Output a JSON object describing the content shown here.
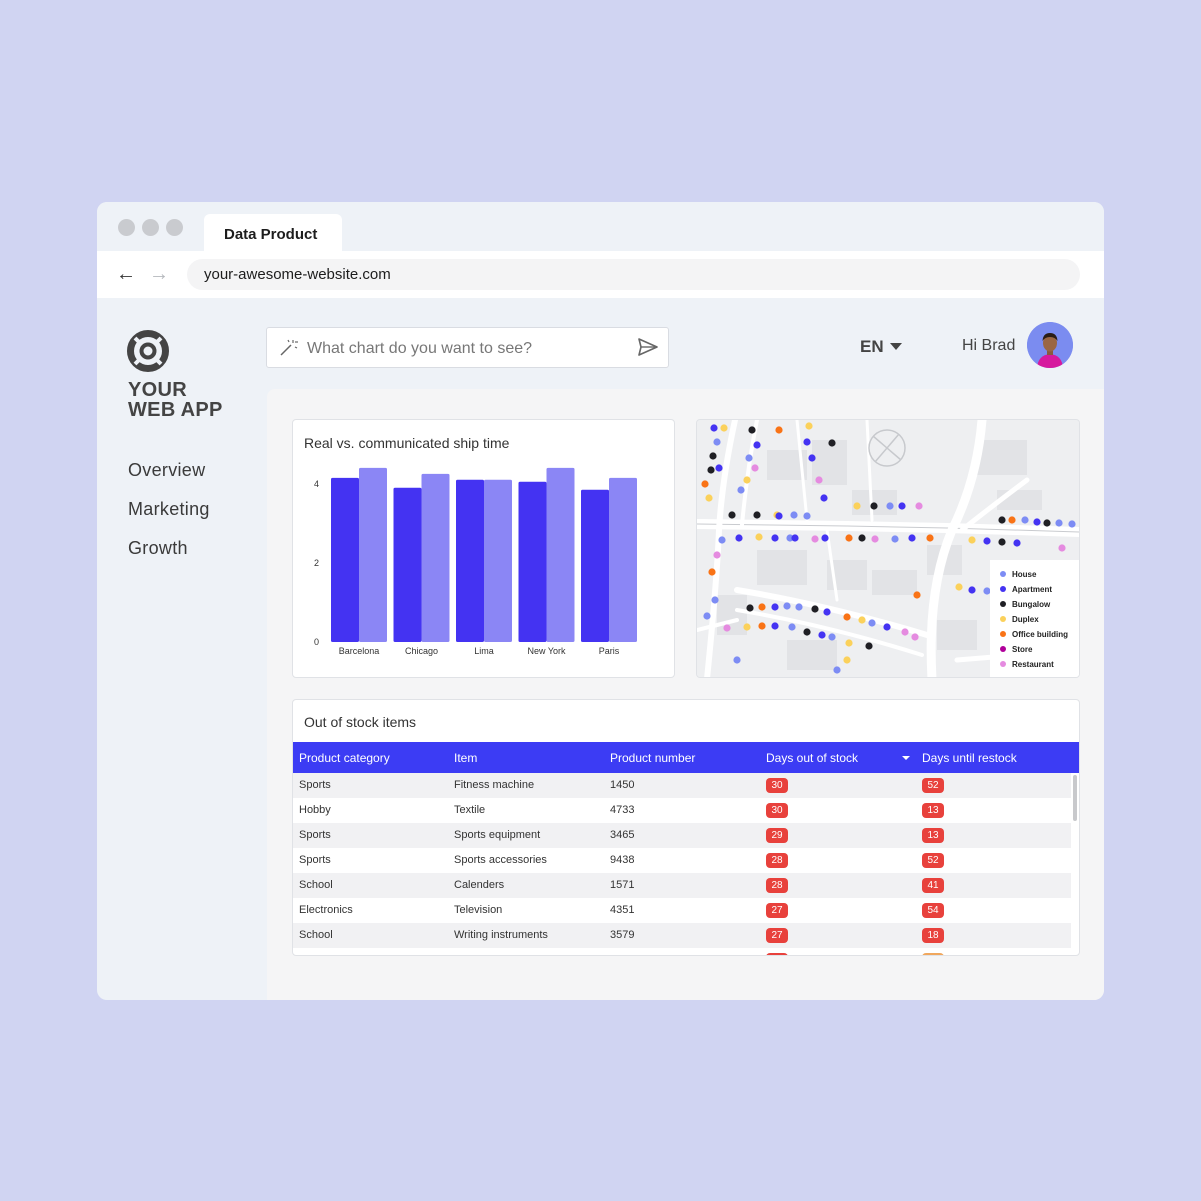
{
  "browser": {
    "tab_title": "Data Product",
    "url": "your-awesome-website.com"
  },
  "sidebar": {
    "logo_line1": "YOUR",
    "logo_line2": "WEB APP",
    "items": [
      {
        "label": "Overview"
      },
      {
        "label": "Marketing"
      },
      {
        "label": "Growth"
      }
    ]
  },
  "header": {
    "search_placeholder": "What chart do you want to see?",
    "language": "EN",
    "greeting": "Hi Brad"
  },
  "colors": {
    "accent": "#3c3cf4",
    "series_real": "#4433f2",
    "series_communicated": "#8b86f5",
    "badge_red": "#e8413c"
  },
  "chart_data": {
    "type": "bar",
    "title": "Real vs. communicated ship time",
    "categories": [
      "Barcelona",
      "Chicago",
      "Lima",
      "New York",
      "Paris"
    ],
    "series": [
      {
        "values": [
          4.15,
          3.9,
          4.1,
          4.05,
          3.85
        ]
      },
      {
        "values": [
          4.4,
          4.25,
          4.1,
          4.4,
          4.15
        ]
      }
    ],
    "yticks": [
      0,
      2,
      4
    ],
    "ylim": [
      0,
      4.55
    ],
    "grid": false
  },
  "map": {
    "legend": [
      {
        "label": "House",
        "color": "#7d8cf4"
      },
      {
        "label": "Apartment",
        "color": "#4433f2"
      },
      {
        "label": "Bungalow",
        "color": "#1f1f24"
      },
      {
        "label": "Duplex",
        "color": "#fbd15b"
      },
      {
        "label": "Office building",
        "color": "#f97316"
      },
      {
        "label": "Store",
        "color": "#b0009a"
      },
      {
        "label": "Restaurant",
        "color": "#e58be0"
      }
    ]
  },
  "table": {
    "title": "Out of stock items",
    "columns": [
      "Product category",
      "Item",
      "Product number",
      "Days out of stock",
      "Days until restock"
    ],
    "rows": [
      {
        "category": "Sports",
        "item": "Fitness machine",
        "number": "1450",
        "days_out": "30",
        "days_restock": "52"
      },
      {
        "category": "Hobby",
        "item": "Textile",
        "number": "4733",
        "days_out": "30",
        "days_restock": "13"
      },
      {
        "category": "Sports",
        "item": "Sports equipment",
        "number": "3465",
        "days_out": "29",
        "days_restock": "13"
      },
      {
        "category": "Sports",
        "item": "Sports accessories",
        "number": "9438",
        "days_out": "28",
        "days_restock": "52"
      },
      {
        "category": "School",
        "item": "Calenders",
        "number": "1571",
        "days_out": "28",
        "days_restock": "41"
      },
      {
        "category": "Electronics",
        "item": "Television",
        "number": "4351",
        "days_out": "27",
        "days_restock": "54"
      },
      {
        "category": "School",
        "item": "Writing instruments",
        "number": "3579",
        "days_out": "27",
        "days_restock": "18"
      }
    ]
  }
}
